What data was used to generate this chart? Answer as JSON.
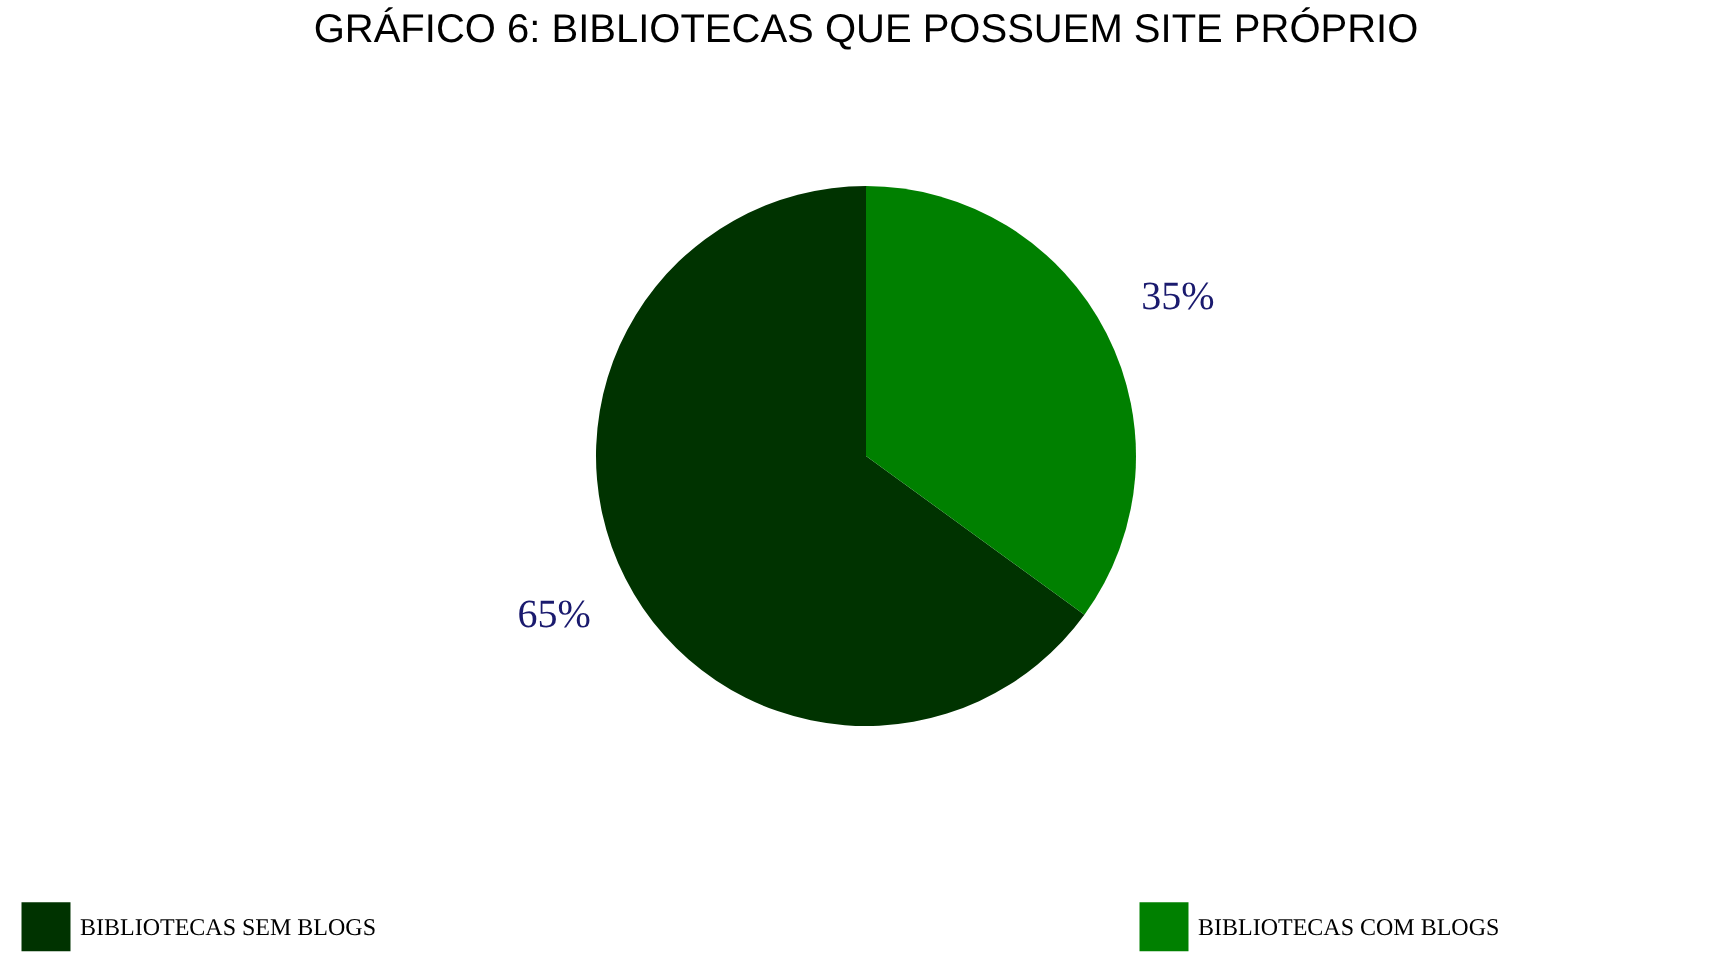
{
  "chart_data": {
    "type": "pie",
    "title": "GRÁFICO 6: BIBLIOTECAS QUE POSSUEM SITE PRÓPRIO",
    "categories": [
      "BIBLIOTECAS SEM BLOGS",
      "BIBLIOTECAS COM BLOGS"
    ],
    "values": [
      65,
      35
    ],
    "colors": [
      "#003300",
      "#008000"
    ],
    "value_labels": [
      "65%",
      "35%"
    ],
    "legend": "bottom"
  }
}
